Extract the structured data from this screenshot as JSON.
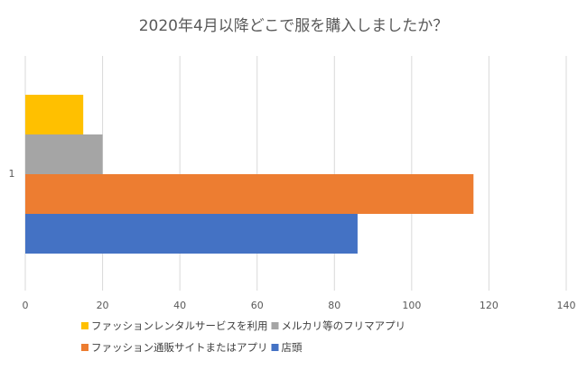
{
  "chart_data": {
    "type": "bar",
    "orientation": "horizontal",
    "title": "2020年4月以降どこで服を購入しましたか？",
    "categories": [
      "1"
    ],
    "series": [
      {
        "name": "ファッションレンタルサービスを利用",
        "values": [
          15
        ],
        "color": "#FFC000"
      },
      {
        "name": "メルカリ等のフリマアプリ",
        "values": [
          20
        ],
        "color": "#A5A5A5"
      },
      {
        "name": "ファッション通販サイトまたはアプリ",
        "values": [
          116
        ],
        "color": "#ED7D31"
      },
      {
        "name": "店頭",
        "values": [
          86
        ],
        "color": "#4472C4"
      }
    ],
    "xlim": [
      0,
      140
    ],
    "x_ticks": [
      "0",
      "20",
      "40",
      "60",
      "80",
      "100",
      "120",
      "140"
    ],
    "grid": true,
    "legend_position": "bottom",
    "grid_color": "#D9D9D9"
  }
}
